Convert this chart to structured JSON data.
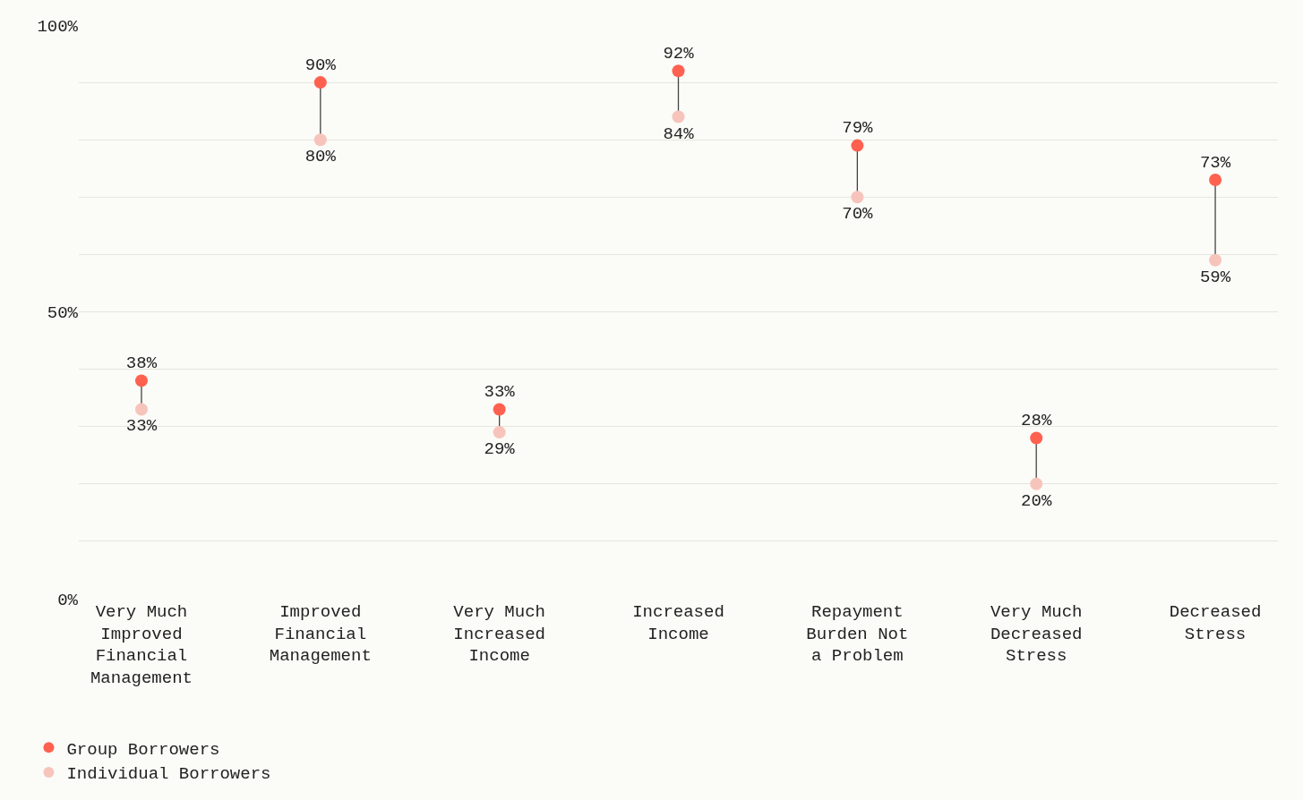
{
  "chart_data": {
    "type": "scatter",
    "categories": [
      "Very Much Improved Financial Management",
      "Improved Financial Management",
      "Very Much Increased Income",
      "Increased Income",
      "Repayment Burden Not a Problem",
      "Very Much Decreased Stress",
      "Decreased Stress"
    ],
    "series": [
      {
        "name": "Group Borrowers",
        "color": "#ff6150",
        "values": [
          38,
          90,
          33,
          92,
          79,
          28,
          73
        ],
        "value_labels": [
          "38%",
          "90%",
          "33%",
          "92%",
          "79%",
          "28%",
          "73%"
        ]
      },
      {
        "name": "Individual Borrowers",
        "color": "#f7c4bb",
        "values": [
          33,
          80,
          29,
          84,
          70,
          20,
          59
        ],
        "value_labels": [
          "33%",
          "80%",
          "29%",
          "84%",
          "70%",
          "20%",
          "59%"
        ]
      }
    ],
    "ylim": [
      0,
      100
    ],
    "yticks": [
      {
        "value": 0,
        "label": "0%"
      },
      {
        "value": 10,
        "label": null
      },
      {
        "value": 20,
        "label": null
      },
      {
        "value": 30,
        "label": null
      },
      {
        "value": 40,
        "label": null
      },
      {
        "value": 50,
        "label": "50%"
      },
      {
        "value": 60,
        "label": null
      },
      {
        "value": 70,
        "label": null
      },
      {
        "value": 80,
        "label": null
      },
      {
        "value": 90,
        "label": null
      },
      {
        "value": 100,
        "label": "100%"
      }
    ],
    "grid": "y",
    "legend": "bottom left",
    "marker": "circle"
  }
}
